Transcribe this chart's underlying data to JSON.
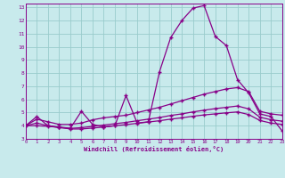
{
  "xlabel": "Windchill (Refroidissement éolien,°C)",
  "bg_color": "#c8eaec",
  "line_color": "#880088",
  "grid_color": "#99cccc",
  "xlim": [
    0,
    23
  ],
  "ylim": [
    3,
    13.3
  ],
  "xticks": [
    0,
    1,
    2,
    3,
    4,
    5,
    6,
    7,
    8,
    9,
    10,
    11,
    12,
    13,
    14,
    15,
    16,
    17,
    18,
    19,
    20,
    21,
    22,
    23
  ],
  "yticks": [
    3,
    4,
    5,
    6,
    7,
    8,
    9,
    10,
    11,
    12,
    13
  ],
  "curve1_x": [
    0,
    1,
    2,
    3,
    4,
    5,
    6,
    7,
    8,
    9,
    10,
    11,
    12,
    13,
    14,
    15,
    16,
    17,
    18,
    19,
    20,
    21,
    22,
    23
  ],
  "curve1_y": [
    4.0,
    4.7,
    4.0,
    3.9,
    3.8,
    5.1,
    4.1,
    3.9,
    4.0,
    6.3,
    4.2,
    4.3,
    8.1,
    10.7,
    12.0,
    12.95,
    13.15,
    10.8,
    10.1,
    7.5,
    6.5,
    4.9,
    4.7,
    3.6
  ],
  "curve2_x": [
    0,
    1,
    2,
    3,
    4,
    5,
    6,
    7,
    8,
    9,
    10,
    11,
    12,
    13,
    14,
    15,
    16,
    17,
    18,
    19,
    20,
    21,
    22,
    23
  ],
  "curve2_y": [
    4.0,
    4.5,
    4.3,
    4.1,
    4.1,
    4.2,
    4.45,
    4.6,
    4.7,
    4.8,
    5.0,
    5.2,
    5.4,
    5.65,
    5.9,
    6.15,
    6.4,
    6.6,
    6.8,
    6.9,
    6.6,
    5.1,
    4.9,
    4.8
  ],
  "curve3_x": [
    0,
    1,
    2,
    3,
    4,
    5,
    6,
    7,
    8,
    9,
    10,
    11,
    12,
    13,
    14,
    15,
    16,
    17,
    18,
    19,
    20,
    21,
    22,
    23
  ],
  "curve3_y": [
    4.0,
    4.2,
    4.0,
    3.85,
    3.8,
    3.85,
    3.95,
    4.05,
    4.15,
    4.25,
    4.38,
    4.5,
    4.62,
    4.78,
    4.9,
    5.05,
    5.18,
    5.3,
    5.4,
    5.5,
    5.28,
    4.65,
    4.45,
    4.35
  ],
  "curve4_x": [
    0,
    1,
    2,
    3,
    4,
    5,
    6,
    7,
    8,
    9,
    10,
    11,
    12,
    13,
    14,
    15,
    16,
    17,
    18,
    19,
    20,
    21,
    22,
    23
  ],
  "curve4_y": [
    4.0,
    4.0,
    3.95,
    3.88,
    3.75,
    3.75,
    3.82,
    3.9,
    4.0,
    4.08,
    4.18,
    4.28,
    4.38,
    4.5,
    4.6,
    4.72,
    4.82,
    4.9,
    4.98,
    5.05,
    4.85,
    4.4,
    4.2,
    4.1
  ]
}
